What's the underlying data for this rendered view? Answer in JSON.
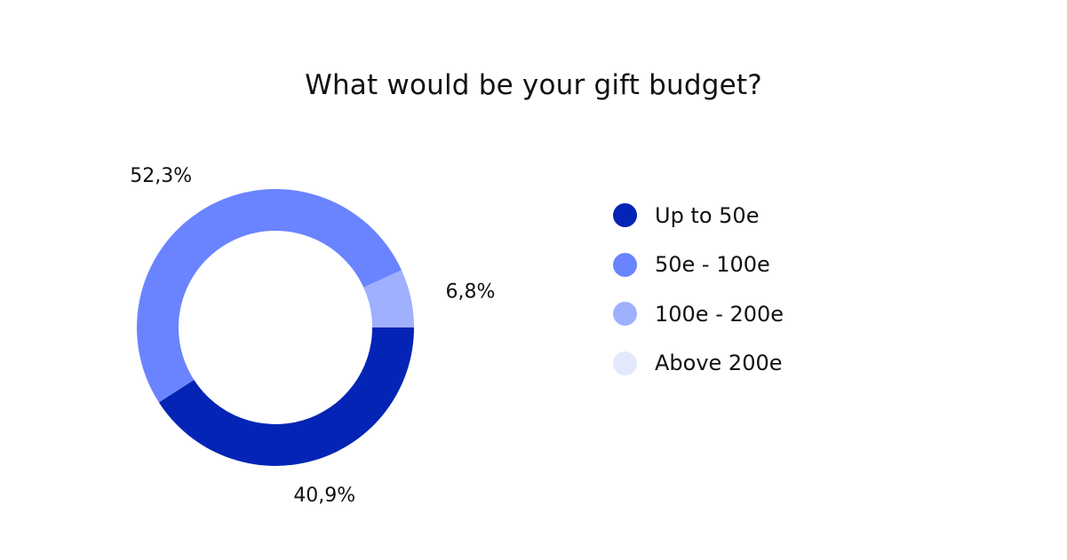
{
  "chart_data": {
    "type": "pie",
    "title": "What would be your gift budget?",
    "categories": [
      "Up to 50e",
      "50e - 100e",
      "100e - 200e",
      "Above 200e"
    ],
    "values": [
      40.9,
      52.3,
      6.8,
      0
    ],
    "value_labels": [
      "40,9%",
      "52,3%",
      "6,8%",
      ""
    ],
    "colors": [
      "#0424b5",
      "#6a83ff",
      "#9fb0ff",
      "#e3e8fd"
    ],
    "legend_position": "right",
    "donut": true
  }
}
